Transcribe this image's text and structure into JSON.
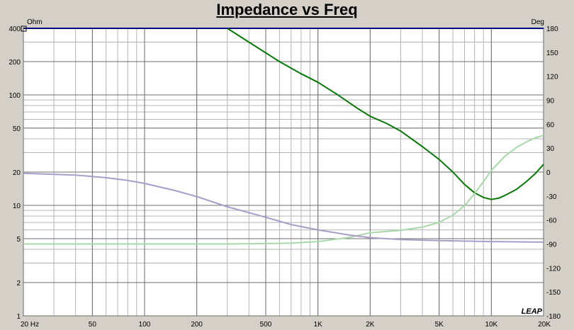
{
  "chart_data": {
    "type": "line",
    "title": "Impedance vs Freq",
    "x_scale": "log",
    "xlim": [
      20,
      20000
    ],
    "x_ticks": [
      {
        "value": 20,
        "label": "20  Hz"
      },
      {
        "value": 50,
        "label": "50"
      },
      {
        "value": 100,
        "label": "100"
      },
      {
        "value": 200,
        "label": "200"
      },
      {
        "value": 500,
        "label": "500"
      },
      {
        "value": 1000,
        "label": "1K"
      },
      {
        "value": 2000,
        "label": "2K"
      },
      {
        "value": 5000,
        "label": "5K"
      },
      {
        "value": 10000,
        "label": "10K"
      },
      {
        "value": 20000,
        "label": "20K"
      }
    ],
    "y_left": {
      "unit": "Ohm",
      "scale": "log",
      "lim": [
        1,
        400
      ],
      "ticks": [
        {
          "value": 1,
          "label": "1"
        },
        {
          "value": 2,
          "label": "2"
        },
        {
          "value": 5,
          "label": "5"
        },
        {
          "value": 10,
          "label": "10"
        },
        {
          "value": 20,
          "label": "20"
        },
        {
          "value": 50,
          "label": "50"
        },
        {
          "value": 100,
          "label": "100"
        },
        {
          "value": 200,
          "label": "200"
        },
        {
          "value": 400,
          "label": "400"
        }
      ]
    },
    "y_right": {
      "unit": "Deg",
      "scale": "linear",
      "lim": [
        -180,
        180
      ],
      "ticks": [
        -180,
        -150,
        -120,
        -90,
        -60,
        -30,
        0,
        30,
        60,
        90,
        120,
        150,
        180
      ]
    },
    "grid": true,
    "watermark": "LEAP",
    "series": [
      {
        "axis": "left",
        "color": "#087808",
        "points": [
          [
            300,
            400
          ],
          [
            400,
            300
          ],
          [
            600,
            200
          ],
          [
            800,
            155
          ],
          [
            1000,
            130
          ],
          [
            1300,
            100
          ],
          [
            1700,
            75
          ],
          [
            2000,
            64
          ],
          [
            2500,
            55
          ],
          [
            3000,
            47
          ],
          [
            4000,
            34
          ],
          [
            5000,
            26
          ],
          [
            6000,
            20
          ],
          [
            7000,
            15.5
          ],
          [
            8000,
            13
          ],
          [
            9000,
            11.8
          ],
          [
            10000,
            11.3
          ],
          [
            11000,
            11.6
          ],
          [
            12000,
            12.3
          ],
          [
            14000,
            14
          ],
          [
            16000,
            16.5
          ],
          [
            18000,
            19.5
          ],
          [
            20000,
            23.5
          ]
        ]
      },
      {
        "axis": "right",
        "color": "#a8d8a8",
        "points": [
          [
            20,
            -90
          ],
          [
            100,
            -90
          ],
          [
            300,
            -90
          ],
          [
            500,
            -89.5
          ],
          [
            700,
            -89
          ],
          [
            1000,
            -87
          ],
          [
            1500,
            -82
          ],
          [
            2000,
            -76
          ],
          [
            3000,
            -73
          ],
          [
            4000,
            -69
          ],
          [
            5000,
            -63
          ],
          [
            6000,
            -54
          ],
          [
            7000,
            -42
          ],
          [
            8000,
            -27
          ],
          [
            9000,
            -12
          ],
          [
            10000,
            2
          ],
          [
            12000,
            20
          ],
          [
            14000,
            31
          ],
          [
            16000,
            38
          ],
          [
            18000,
            43
          ],
          [
            20000,
            46
          ]
        ]
      },
      {
        "axis": "left",
        "color": "#a89cc8",
        "points": [
          [
            20,
            19.5
          ],
          [
            40,
            18.8
          ],
          [
            60,
            17.8
          ],
          [
            80,
            16.8
          ],
          [
            100,
            15.8
          ],
          [
            150,
            13.6
          ],
          [
            200,
            12
          ],
          [
            300,
            9.7
          ],
          [
            500,
            7.8
          ],
          [
            700,
            6.7
          ],
          [
            1000,
            6
          ],
          [
            1500,
            5.4
          ],
          [
            2000,
            5.1
          ],
          [
            3000,
            4.9
          ],
          [
            5000,
            4.8
          ],
          [
            10000,
            4.7
          ],
          [
            20000,
            4.65
          ]
        ]
      }
    ]
  }
}
